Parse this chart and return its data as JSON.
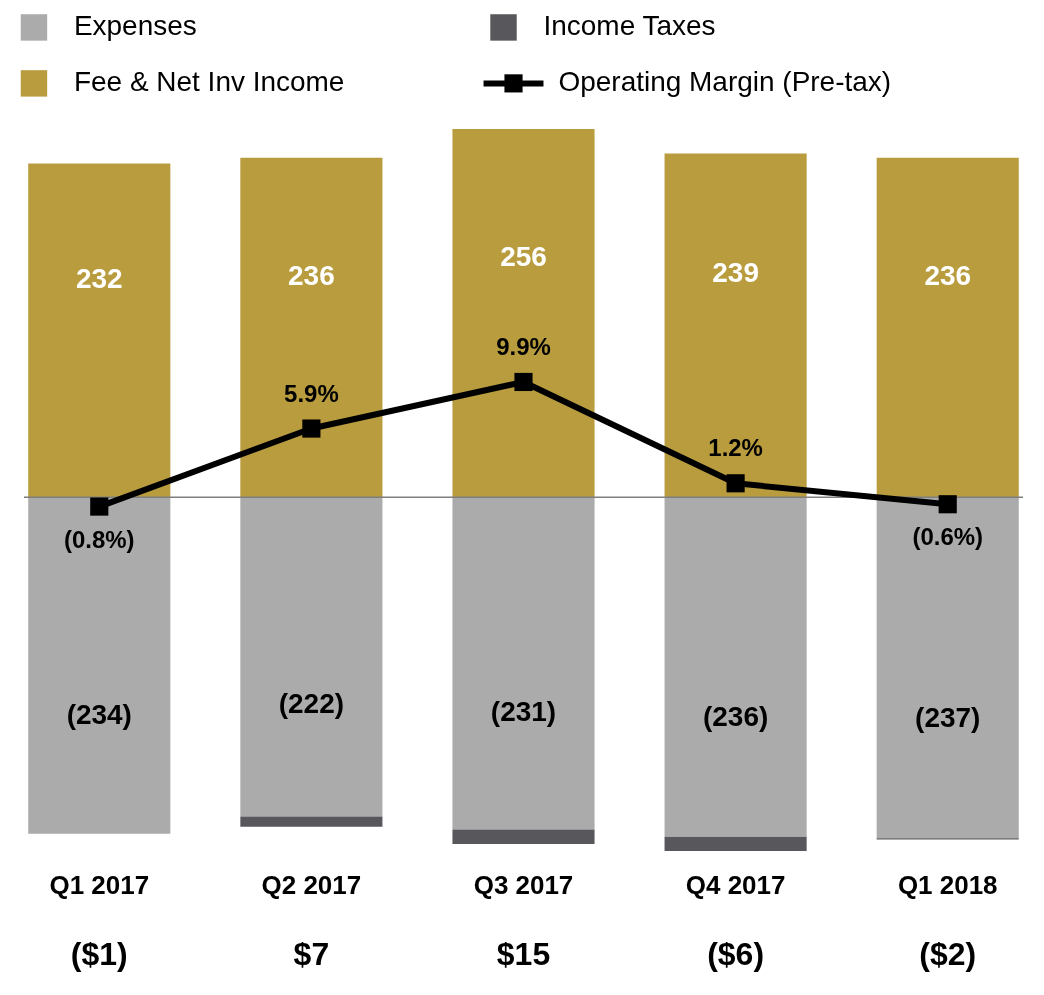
{
  "chart_data": {
    "type": "bar",
    "stacked": true,
    "categories": [
      "Q1 2017",
      "Q2 2017",
      "Q3 2017",
      "Q4 2017",
      "Q1 2018"
    ],
    "tick_labels": "x",
    "legend": "top left",
    "series": [
      {
        "name": "Expenses",
        "color": "#ababab",
        "values": [
          -234,
          -222,
          -231,
          -236,
          -237
        ],
        "value_labels": [
          "(234)",
          "(222)",
          "(231)",
          "(236)",
          "(237)"
        ]
      },
      {
        "name": "Income Taxes",
        "color": "#58575b",
        "values": [
          null,
          -7,
          -10,
          -10,
          -1
        ]
      },
      {
        "name": "Fee & Net Inv Income",
        "color": "#b89c3e",
        "values": [
          232,
          236,
          256,
          239,
          236
        ],
        "value_labels": [
          "232",
          "236",
          "256",
          "239",
          "236"
        ]
      },
      {
        "name": "Operating Margin (Pre-tax)",
        "type": "line",
        "axis": "y2",
        "marker": "square",
        "color": "#000000",
        "values": [
          -0.8,
          5.9,
          9.9,
          1.2,
          -0.6
        ],
        "value_labels": [
          "(0.8%)",
          "5.9%",
          "9.9%",
          "1.2%",
          "(0.6%)"
        ]
      }
    ],
    "ref_lines": [
      {
        "axis": "y",
        "value": 0,
        "color": "#7f7f7f"
      }
    ],
    "annotations": [
      "($1)",
      "$7",
      "$15",
      "($6)",
      "($2)"
    ]
  }
}
